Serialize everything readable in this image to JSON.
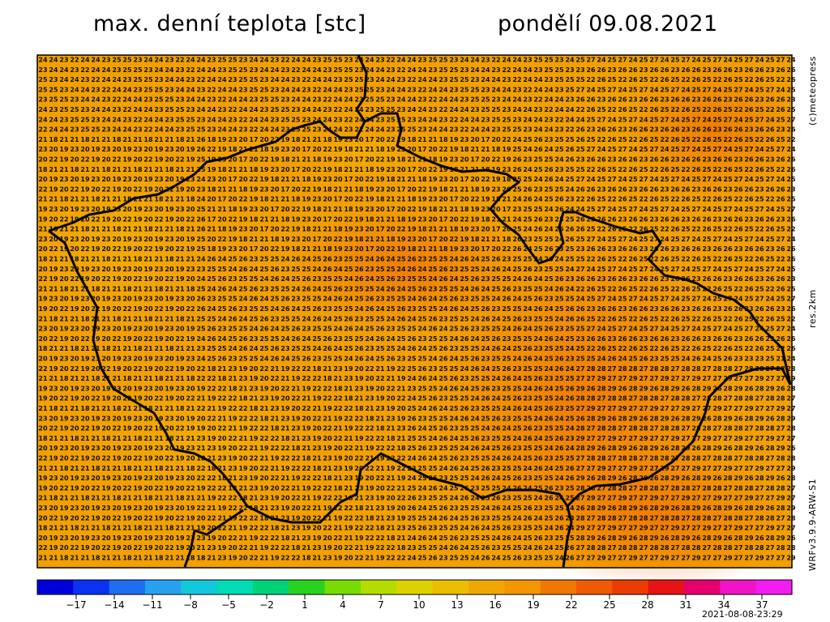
{
  "header": {
    "title": "max. denní teplota [stc]",
    "date": "pondělí 09.08.2021"
  },
  "side_labels": {
    "credit": "(c)meteopress",
    "resolution": "res.2km",
    "model": "WRFv3.9.9-ARW-S1"
  },
  "footer": {
    "timestamp": "2021-08-08-23:29"
  },
  "chart_data": {
    "type": "heatmap",
    "title": "max. denní teplota [stc]",
    "subtitle": "pondělí 09.08.2021",
    "units": "°C",
    "grid_shape": {
      "rows": 51,
      "cols": 72
    },
    "value_samples_by_region": {
      "northwest_border": [
        24,
        25,
        24,
        24,
        25,
        24,
        23,
        23,
        23,
        22
      ],
      "north_krkonose": [
        23,
        22,
        21,
        20,
        19,
        18,
        17,
        18,
        19,
        20,
        21
      ],
      "central_bohemia": [
        23,
        24,
        25,
        25,
        26,
        26,
        25,
        24
      ],
      "bohemian_moravian_highlands": [
        22,
        23,
        22,
        21,
        19,
        18,
        19,
        20,
        21,
        22
      ],
      "south_moravia": [
        26,
        27,
        27,
        28,
        28,
        29,
        29,
        28,
        27
      ],
      "northeast_moravia": [
        25,
        26,
        26,
        27,
        26,
        25,
        24,
        23,
        22
      ],
      "sumava_southwest": [
        23,
        22,
        21,
        20,
        19,
        18,
        19,
        20,
        21
      ],
      "far_east_beskydy": [
        26,
        25,
        24,
        23,
        21,
        19,
        23,
        24
      ]
    },
    "color_scale": {
      "min": -20,
      "max": 40,
      "tick_labels": [
        "−17",
        "−14",
        "−11",
        "−8",
        "−5",
        "−2",
        "1",
        "4",
        "7",
        "10",
        "13",
        "16",
        "19",
        "22",
        "25",
        "28",
        "31",
        "34",
        "37"
      ],
      "colors": [
        "#0000dc",
        "#0a32f0",
        "#1e6ef0",
        "#28a0f0",
        "#14c8dc",
        "#00dcb4",
        "#00d278",
        "#28d21e",
        "#78dc00",
        "#b4dc00",
        "#dcd200",
        "#ecbe00",
        "#f0a800",
        "#f49600",
        "#f07800",
        "#f05a00",
        "#eb3c00",
        "#e61414",
        "#e6006e",
        "#f014c8",
        "#f01ef0"
      ]
    },
    "legend_position": "bottom"
  }
}
